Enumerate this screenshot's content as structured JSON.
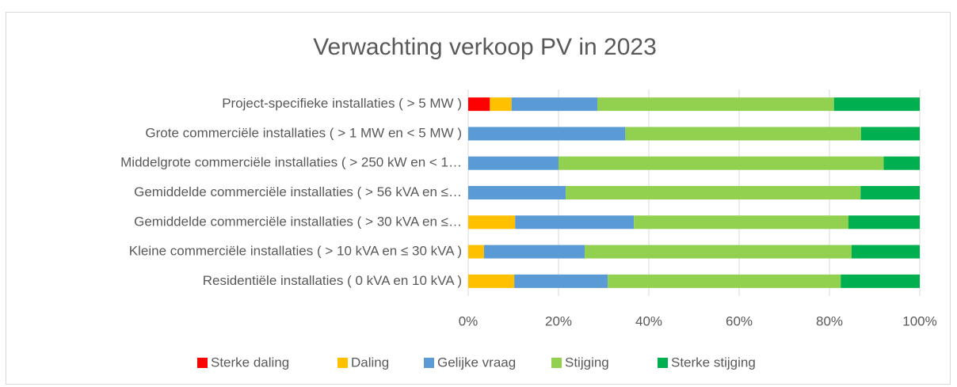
{
  "chart_data": {
    "type": "stacked_bar_horizontal",
    "title": "Verwachting verkoop PV in 2023",
    "categories": [
      "Project-specifieke installaties ( > 5 MW )",
      "Grote commerciële installaties ( > 1 MW en < 5 MW )",
      "Middelgrote commerciële installaties ( > 250 kW en < 1…",
      "Gemiddelde commerciële installaties ( > 56 kVA en ≤…",
      "Gemiddelde commerciële installaties ( > 30 kVA en ≤…",
      "Kleine commerciële installaties ( >  10 kVA en ≤ 30 kVA )",
      "Residentiële installaties ( 0 kVA en 10 kVA )"
    ],
    "series": [
      {
        "name": "Sterke daling",
        "color": "#ff0000",
        "values": [
          4.8,
          0,
          0,
          0,
          0,
          0,
          0
        ]
      },
      {
        "name": "Daling",
        "color": "#ffc000",
        "values": [
          4.8,
          0,
          0,
          0,
          10.4,
          3.5,
          10.2
        ]
      },
      {
        "name": "Gelijke vraag",
        "color": "#5b9bd5",
        "values": [
          19.0,
          34.8,
          20.0,
          21.6,
          26.3,
          22.3,
          20.7
        ]
      },
      {
        "name": "Stijging",
        "color": "#92d050",
        "values": [
          52.4,
          52.2,
          72.0,
          65.3,
          47.5,
          59.1,
          51.6
        ]
      },
      {
        "name": "Sterke stijging",
        "color": "#00b050",
        "values": [
          19.0,
          13.0,
          8.0,
          13.1,
          15.8,
          15.1,
          17.5
        ]
      }
    ],
    "xlim": [
      0,
      100
    ],
    "xticks": [
      {
        "value": 0,
        "label": "0%"
      },
      {
        "value": 20,
        "label": "20%"
      },
      {
        "value": 40,
        "label": "40%"
      },
      {
        "value": 60,
        "label": "60%"
      },
      {
        "value": 80,
        "label": "80%"
      },
      {
        "value": 100,
        "label": "100%"
      }
    ],
    "legend": "bottom"
  }
}
